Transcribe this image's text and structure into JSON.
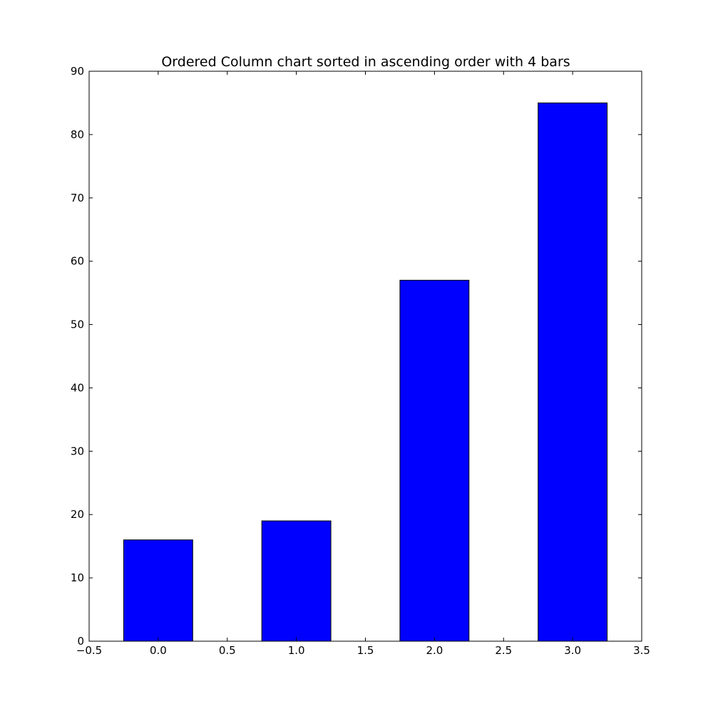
{
  "chart_data": {
    "type": "bar",
    "title": "Ordered Column chart sorted in ascending order with 4 bars",
    "xlabel": "",
    "ylabel": "",
    "x": [
      0,
      1,
      2,
      3
    ],
    "values": [
      16,
      19,
      57,
      85
    ],
    "bar_width": 0.5,
    "xlim": [
      -0.5,
      3.5
    ],
    "ylim": [
      0,
      90
    ],
    "x_ticks": [
      -0.5,
      0.0,
      0.5,
      1.0,
      1.5,
      2.0,
      2.5,
      3.0,
      3.5
    ],
    "x_tick_labels": [
      "−0.5",
      "0.0",
      "0.5",
      "1.0",
      "1.5",
      "2.0",
      "2.5",
      "3.0",
      "3.5"
    ],
    "y_ticks": [
      0,
      10,
      20,
      30,
      40,
      50,
      60,
      70,
      80,
      90
    ],
    "y_tick_labels": [
      "0",
      "10",
      "20",
      "30",
      "40",
      "50",
      "60",
      "70",
      "80",
      "90"
    ],
    "grid": false,
    "legend": "none",
    "colors": {
      "bar_fill": "#0000ff",
      "bar_edge": "#000000",
      "axes": "#000000",
      "background": "#ffffff"
    }
  }
}
